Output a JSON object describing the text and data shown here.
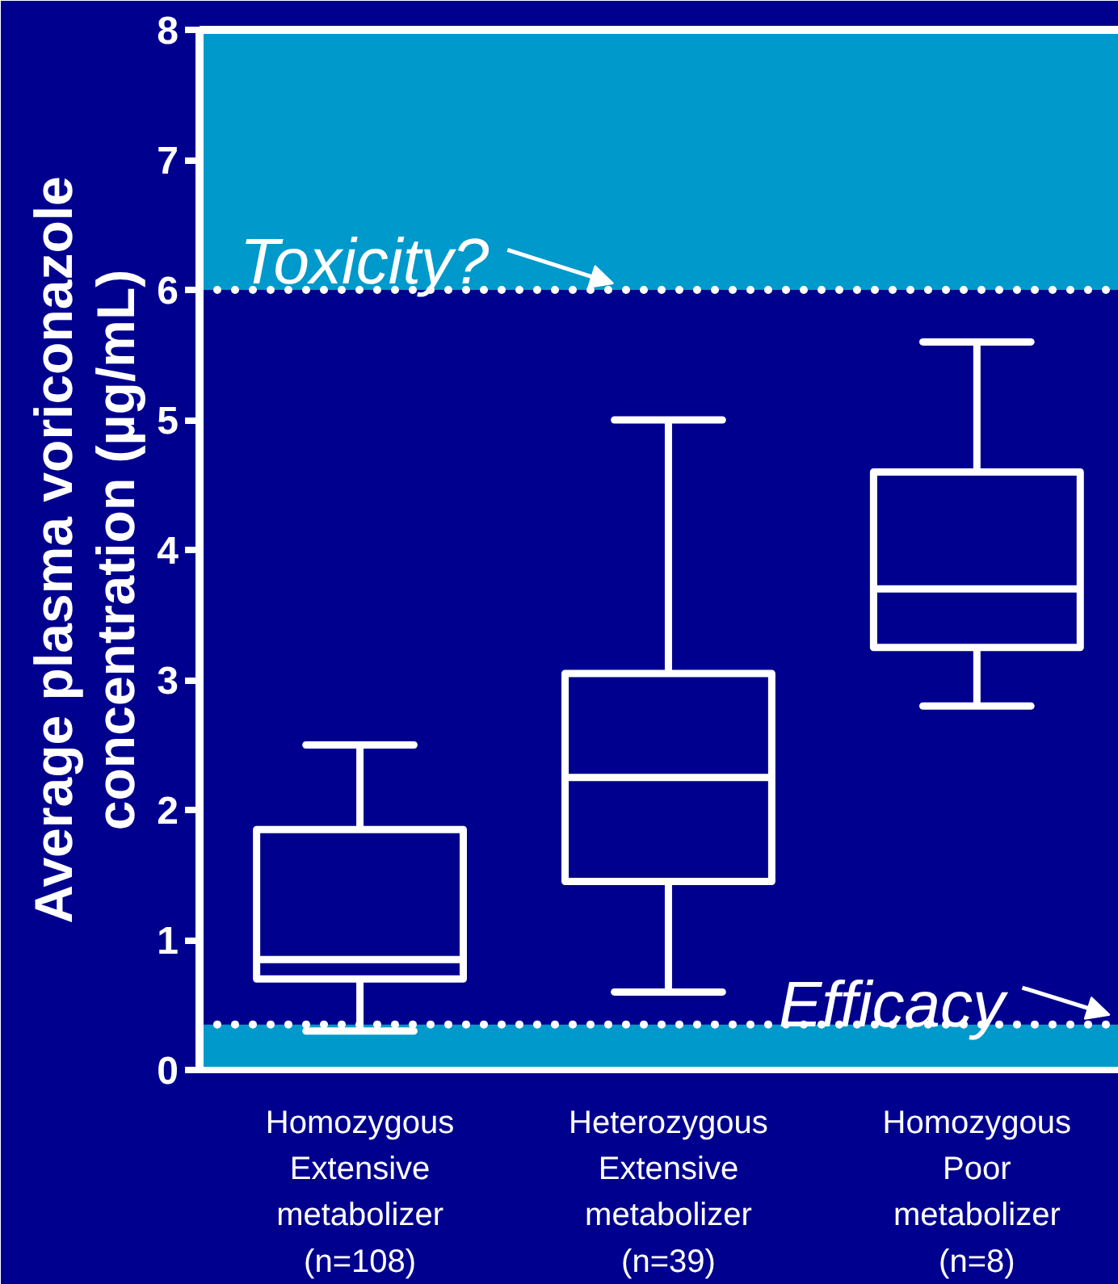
{
  "chart_data": {
    "type": "box",
    "categories": [
      "Homozygous\nExtensive\nmetabolizer\n(n=108)",
      "Heterozygous\nExtensive\nmetabolizer\n(n=39)",
      "Homozygous\nPoor\nmetabolizer\n(n=8)"
    ],
    "series": [
      {
        "color": "#ffffff",
        "boxes": [
          {
            "low": 0.3,
            "q1": 0.7,
            "median": 0.85,
            "q3": 1.85,
            "high": 2.5
          },
          {
            "low": 0.6,
            "q1": 1.45,
            "median": 2.25,
            "q3": 3.05,
            "high": 5.0
          },
          {
            "low": 2.8,
            "q1": 3.25,
            "median": 3.7,
            "q3": 4.6,
            "high": 5.6
          }
        ]
      }
    ],
    "ylabel": "Average plasma voriconazole\nconcentration (µg/mL)",
    "ylim": [
      0,
      8
    ],
    "yticks": [
      0,
      1,
      2,
      3,
      4,
      5,
      6,
      7,
      8
    ],
    "ref_lines": [
      {
        "axis": "y",
        "value": 6,
        "label": "Toxicity?",
        "color": "#ffffff",
        "line_style": "dotted"
      },
      {
        "axis": "y",
        "value": 0.35,
        "label": "Efficacy",
        "color": "#ffffff",
        "line_style": "dotted"
      }
    ],
    "bands": [
      {
        "axis": "y",
        "from": 6,
        "to": 8,
        "color": "#0099cc"
      },
      {
        "axis": "y",
        "from": 0,
        "to": 0.35,
        "color": "#0099cc"
      }
    ]
  }
}
